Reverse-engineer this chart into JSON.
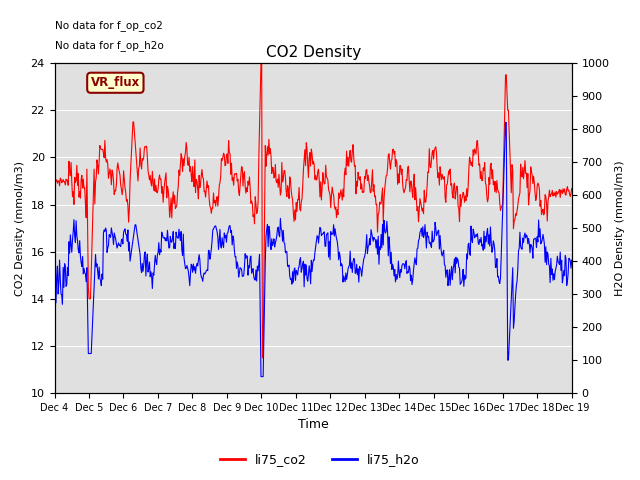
{
  "title": "CO2 Density",
  "xlabel": "Time",
  "ylabel_left": "CO2 Density (mmol/m3)",
  "ylabel_right": "H2O Density (mmol/m3)",
  "ylim_left": [
    10,
    24
  ],
  "ylim_right": [
    0,
    1000
  ],
  "yticks_left": [
    10,
    12,
    14,
    16,
    18,
    20,
    22,
    24
  ],
  "yticks_right": [
    0,
    100,
    200,
    300,
    400,
    500,
    600,
    700,
    800,
    900,
    1000
  ],
  "xtick_labels": [
    "Dec 4",
    "Dec 5",
    "Dec 6",
    "Dec 7",
    "Dec 8",
    "Dec 9",
    "Dec 10",
    "Dec 11",
    "Dec 12",
    "Dec 13",
    "Dec 14",
    "Dec 15",
    "Dec 16",
    "Dec 17",
    "Dec 18",
    "Dec 19"
  ],
  "note_line1": "No data for f_op_co2",
  "note_line2": "No data for f_op_h2o",
  "vr_flux_label": "VR_flux",
  "legend_labels": [
    "li75_co2",
    "li75_h2o"
  ],
  "line_colors": [
    "red",
    "blue"
  ],
  "background_color": "#e8e8e8",
  "figure_bg": "#ffffff",
  "plot_bg": "#e0e0e0"
}
